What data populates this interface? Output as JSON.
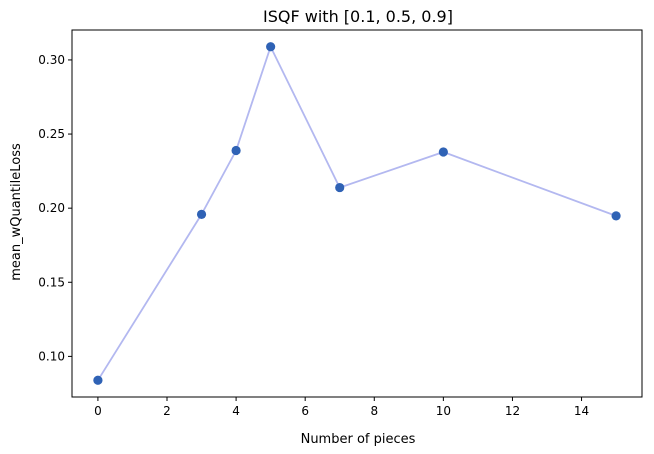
{
  "chart_data": {
    "type": "line",
    "title": "ISQF with [0.1, 0.5, 0.9]",
    "xlabel": "Number of pieces",
    "ylabel": "mean_wQuantileLoss",
    "x": [
      0,
      3,
      4,
      5,
      7,
      10,
      15
    ],
    "series": [
      {
        "values": [
          0.0839,
          0.1958,
          0.2389,
          0.3089,
          0.2139,
          0.2379,
          0.1948
        ],
        "line_color": "#b3b8f0",
        "marker_color": "#2f62b5",
        "marker": "circle"
      }
    ],
    "xlim": [
      -0.75,
      15.75
    ],
    "ylim": [
      0.0726,
      0.3202
    ],
    "xticks": [
      0,
      2,
      4,
      6,
      8,
      10,
      12,
      14
    ],
    "xtick_labels": [
      "0",
      "2",
      "4",
      "6",
      "8",
      "10",
      "12",
      "14"
    ],
    "yticks": [
      0.1,
      0.15,
      0.2,
      0.25,
      0.3
    ],
    "ytick_labels": [
      "0.10",
      "0.15",
      "0.20",
      "0.25",
      "0.30"
    ],
    "grid": false,
    "legend": "none"
  }
}
